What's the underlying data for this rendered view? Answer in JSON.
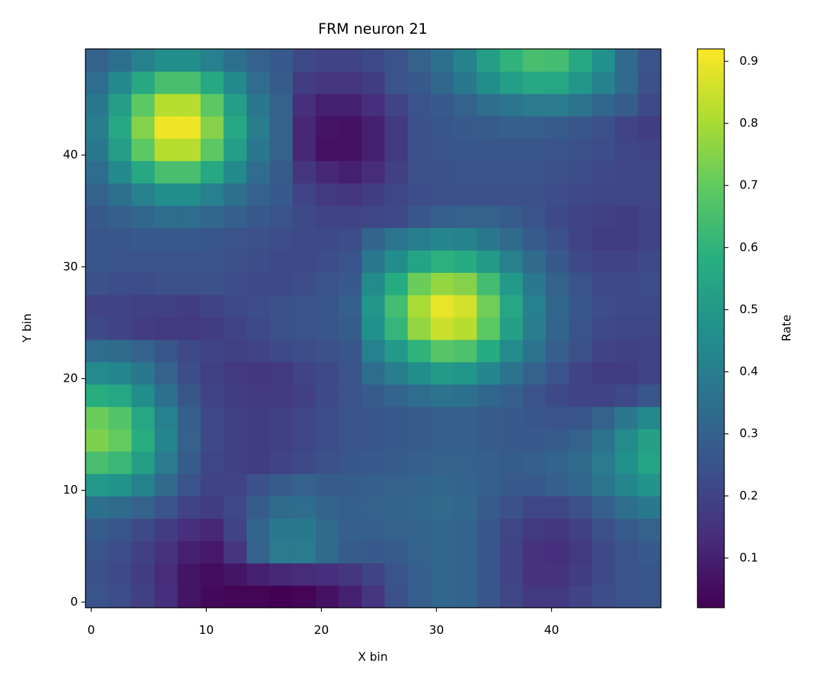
{
  "chart_data": {
    "type": "heatmap",
    "title": "FRM neuron 21",
    "xlabel": "X bin",
    "ylabel": "Y bin",
    "xlim": [
      -0.5,
      49.5
    ],
    "ylim": [
      -0.5,
      49.5
    ],
    "xticks": [
      0,
      10,
      20,
      30,
      40
    ],
    "yticks": [
      0,
      10,
      20,
      30,
      40
    ],
    "colormap": "viridis",
    "colorbar": {
      "label": "Rate",
      "lim": [
        0.02,
        0.92
      ],
      "ticks": [
        0.1,
        0.2,
        0.3,
        0.4,
        0.5,
        0.6,
        0.7,
        0.8,
        0.9
      ]
    },
    "z": [
      [
        0.25,
        0.23,
        0.19,
        0.14,
        0.07,
        0.04,
        0.03,
        0.03,
        0.02,
        0.03,
        0.06,
        0.1,
        0.16,
        0.24,
        0.29,
        0.32,
        0.31,
        0.26,
        0.21,
        0.17,
        0.17,
        0.2,
        0.23,
        0.25,
        0.26
      ],
      [
        0.24,
        0.22,
        0.18,
        0.13,
        0.07,
        0.05,
        0.07,
        0.1,
        0.12,
        0.13,
        0.14,
        0.16,
        0.2,
        0.25,
        0.29,
        0.32,
        0.31,
        0.26,
        0.2,
        0.15,
        0.15,
        0.18,
        0.22,
        0.25,
        0.26
      ],
      [
        0.25,
        0.23,
        0.19,
        0.15,
        0.1,
        0.08,
        0.16,
        0.3,
        0.39,
        0.39,
        0.33,
        0.28,
        0.27,
        0.28,
        0.3,
        0.32,
        0.31,
        0.26,
        0.2,
        0.15,
        0.14,
        0.17,
        0.22,
        0.25,
        0.27
      ],
      [
        0.28,
        0.26,
        0.22,
        0.18,
        0.14,
        0.12,
        0.2,
        0.31,
        0.38,
        0.38,
        0.33,
        0.29,
        0.29,
        0.3,
        0.31,
        0.32,
        0.31,
        0.26,
        0.21,
        0.17,
        0.16,
        0.19,
        0.24,
        0.28,
        0.3
      ],
      [
        0.35,
        0.33,
        0.3,
        0.25,
        0.2,
        0.18,
        0.22,
        0.28,
        0.33,
        0.34,
        0.31,
        0.29,
        0.3,
        0.31,
        0.32,
        0.33,
        0.32,
        0.28,
        0.24,
        0.21,
        0.21,
        0.24,
        0.29,
        0.34,
        0.38
      ],
      [
        0.5,
        0.48,
        0.42,
        0.33,
        0.25,
        0.2,
        0.2,
        0.24,
        0.28,
        0.3,
        0.28,
        0.28,
        0.29,
        0.3,
        0.31,
        0.32,
        0.31,
        0.29,
        0.27,
        0.27,
        0.29,
        0.32,
        0.37,
        0.43,
        0.48
      ],
      [
        0.65,
        0.62,
        0.52,
        0.39,
        0.28,
        0.21,
        0.19,
        0.18,
        0.2,
        0.22,
        0.24,
        0.26,
        0.27,
        0.28,
        0.29,
        0.3,
        0.3,
        0.29,
        0.28,
        0.29,
        0.31,
        0.33,
        0.39,
        0.47,
        0.54
      ],
      [
        0.74,
        0.7,
        0.58,
        0.43,
        0.3,
        0.22,
        0.19,
        0.18,
        0.19,
        0.21,
        0.23,
        0.25,
        0.26,
        0.27,
        0.28,
        0.29,
        0.29,
        0.28,
        0.27,
        0.27,
        0.28,
        0.3,
        0.36,
        0.45,
        0.53
      ],
      [
        0.71,
        0.67,
        0.55,
        0.41,
        0.29,
        0.22,
        0.19,
        0.18,
        0.19,
        0.21,
        0.23,
        0.25,
        0.26,
        0.27,
        0.28,
        0.29,
        0.29,
        0.28,
        0.27,
        0.26,
        0.25,
        0.26,
        0.3,
        0.38,
        0.44
      ],
      [
        0.58,
        0.55,
        0.46,
        0.35,
        0.26,
        0.2,
        0.18,
        0.17,
        0.17,
        0.19,
        0.22,
        0.25,
        0.28,
        0.31,
        0.34,
        0.36,
        0.35,
        0.32,
        0.29,
        0.25,
        0.22,
        0.2,
        0.2,
        0.22,
        0.26
      ],
      [
        0.45,
        0.43,
        0.38,
        0.3,
        0.23,
        0.19,
        0.17,
        0.16,
        0.17,
        0.2,
        0.22,
        0.25,
        0.34,
        0.4,
        0.46,
        0.5,
        0.49,
        0.43,
        0.36,
        0.3,
        0.25,
        0.2,
        0.18,
        0.18,
        0.2
      ],
      [
        0.34,
        0.33,
        0.3,
        0.26,
        0.22,
        0.2,
        0.19,
        0.2,
        0.22,
        0.23,
        0.24,
        0.26,
        0.41,
        0.5,
        0.6,
        0.68,
        0.66,
        0.57,
        0.45,
        0.36,
        0.29,
        0.24,
        0.2,
        0.19,
        0.2
      ],
      [
        0.22,
        0.2,
        0.18,
        0.17,
        0.17,
        0.18,
        0.2,
        0.22,
        0.24,
        0.25,
        0.26,
        0.28,
        0.47,
        0.61,
        0.77,
        0.85,
        0.82,
        0.69,
        0.53,
        0.4,
        0.31,
        0.25,
        0.22,
        0.21,
        0.21
      ],
      [
        0.2,
        0.2,
        0.19,
        0.19,
        0.18,
        0.2,
        0.22,
        0.23,
        0.24,
        0.25,
        0.26,
        0.29,
        0.49,
        0.64,
        0.8,
        0.89,
        0.86,
        0.72,
        0.55,
        0.41,
        0.32,
        0.26,
        0.23,
        0.22,
        0.22
      ],
      [
        0.24,
        0.23,
        0.23,
        0.24,
        0.24,
        0.24,
        0.23,
        0.22,
        0.22,
        0.23,
        0.25,
        0.27,
        0.45,
        0.57,
        0.71,
        0.77,
        0.75,
        0.64,
        0.5,
        0.38,
        0.3,
        0.25,
        0.22,
        0.22,
        0.23
      ],
      [
        0.26,
        0.25,
        0.25,
        0.25,
        0.25,
        0.25,
        0.24,
        0.23,
        0.22,
        0.22,
        0.23,
        0.25,
        0.38,
        0.46,
        0.54,
        0.59,
        0.57,
        0.5,
        0.41,
        0.33,
        0.27,
        0.22,
        0.2,
        0.2,
        0.22
      ],
      [
        0.26,
        0.26,
        0.27,
        0.27,
        0.27,
        0.26,
        0.25,
        0.24,
        0.23,
        0.22,
        0.22,
        0.23,
        0.31,
        0.37,
        0.4,
        0.43,
        0.42,
        0.38,
        0.33,
        0.28,
        0.24,
        0.2,
        0.18,
        0.18,
        0.2
      ],
      [
        0.27,
        0.29,
        0.32,
        0.34,
        0.34,
        0.32,
        0.29,
        0.27,
        0.25,
        0.22,
        0.2,
        0.2,
        0.21,
        0.22,
        0.26,
        0.29,
        0.3,
        0.3,
        0.28,
        0.25,
        0.22,
        0.2,
        0.19,
        0.18,
        0.2
      ],
      [
        0.3,
        0.35,
        0.41,
        0.46,
        0.46,
        0.41,
        0.35,
        0.3,
        0.27,
        0.2,
        0.17,
        0.16,
        0.18,
        0.21,
        0.23,
        0.24,
        0.24,
        0.24,
        0.24,
        0.24,
        0.23,
        0.22,
        0.21,
        0.21,
        0.21
      ],
      [
        0.34,
        0.44,
        0.56,
        0.65,
        0.65,
        0.56,
        0.44,
        0.34,
        0.28,
        0.16,
        0.12,
        0.1,
        0.13,
        0.19,
        0.24,
        0.24,
        0.25,
        0.25,
        0.25,
        0.25,
        0.24,
        0.23,
        0.22,
        0.21,
        0.21
      ],
      [
        0.38,
        0.52,
        0.69,
        0.82,
        0.82,
        0.69,
        0.52,
        0.38,
        0.3,
        0.12,
        0.06,
        0.06,
        0.1,
        0.17,
        0.24,
        0.25,
        0.26,
        0.26,
        0.26,
        0.26,
        0.25,
        0.24,
        0.23,
        0.21,
        0.2
      ],
      [
        0.4,
        0.56,
        0.75,
        0.9,
        0.9,
        0.75,
        0.56,
        0.4,
        0.3,
        0.12,
        0.07,
        0.06,
        0.1,
        0.17,
        0.24,
        0.26,
        0.27,
        0.28,
        0.29,
        0.29,
        0.28,
        0.26,
        0.24,
        0.2,
        0.18
      ],
      [
        0.38,
        0.52,
        0.69,
        0.82,
        0.82,
        0.69,
        0.52,
        0.38,
        0.3,
        0.14,
        0.1,
        0.1,
        0.14,
        0.2,
        0.25,
        0.27,
        0.3,
        0.34,
        0.37,
        0.39,
        0.39,
        0.36,
        0.32,
        0.28,
        0.22
      ],
      [
        0.34,
        0.44,
        0.56,
        0.65,
        0.65,
        0.56,
        0.44,
        0.34,
        0.28,
        0.18,
        0.16,
        0.16,
        0.18,
        0.25,
        0.27,
        0.32,
        0.38,
        0.46,
        0.52,
        0.56,
        0.55,
        0.49,
        0.42,
        0.33,
        0.24
      ],
      [
        0.3,
        0.35,
        0.41,
        0.46,
        0.46,
        0.41,
        0.35,
        0.3,
        0.27,
        0.22,
        0.2,
        0.2,
        0.22,
        0.25,
        0.3,
        0.35,
        0.42,
        0.52,
        0.6,
        0.65,
        0.64,
        0.56,
        0.47,
        0.33,
        0.25
      ]
    ]
  }
}
